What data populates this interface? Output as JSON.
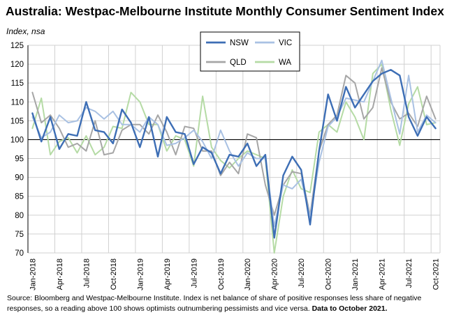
{
  "title": "Australia: Westpac-Melbourne Institute Monthly Consumer Sentiment Index",
  "ylabel": "Index, nsa",
  "footnote": {
    "text": "Source: Bloomberg and Westpac-Melbourne Institute.  Index is net balance of share of positive responses less share of negative responses, so a reading above 100 shows optimists outnumbering pessimists and vice versa.",
    "bold": "Data to October 2021."
  },
  "chart_data": {
    "type": "line",
    "title": "Australia: Westpac-Melbourne Institute Monthly Consumer Sentiment Index",
    "ylabel": "Index, nsa",
    "xlabel": "",
    "ylim": [
      70,
      125
    ],
    "yticks": [
      70,
      75,
      80,
      85,
      90,
      95,
      100,
      105,
      110,
      115,
      120,
      125
    ],
    "x_tick_labels": [
      "Jan-2018",
      "Apr-2018",
      "Jul-2018",
      "Oct-2018",
      "Jan-2019",
      "Apr-2019",
      "Jul-2019",
      "Oct-2019",
      "Jan-2020",
      "Apr-2020",
      "Jul-2020",
      "Oct-2020",
      "Jan-2021",
      "Apr-2021",
      "Jul-2021",
      "Oct-2021"
    ],
    "x": [
      "Jan-2018",
      "Feb-2018",
      "Mar-2018",
      "Apr-2018",
      "May-2018",
      "Jun-2018",
      "Jul-2018",
      "Aug-2018",
      "Sep-2018",
      "Oct-2018",
      "Nov-2018",
      "Dec-2018",
      "Jan-2019",
      "Feb-2019",
      "Mar-2019",
      "Apr-2019",
      "May-2019",
      "Jun-2019",
      "Jul-2019",
      "Aug-2019",
      "Sep-2019",
      "Oct-2019",
      "Nov-2019",
      "Dec-2019",
      "Jan-2020",
      "Feb-2020",
      "Mar-2020",
      "Apr-2020",
      "May-2020",
      "Jun-2020",
      "Jul-2020",
      "Aug-2020",
      "Sep-2020",
      "Oct-2020",
      "Nov-2020",
      "Dec-2020",
      "Jan-2021",
      "Feb-2021",
      "Mar-2021",
      "Apr-2021",
      "May-2021",
      "Jun-2021",
      "Jul-2021",
      "Aug-2021",
      "Sep-2021",
      "Oct-2021"
    ],
    "grid": true,
    "legend_position": "top-center",
    "legend_columns": 2,
    "series": [
      {
        "name": "NSW",
        "color": "#3d6eb5",
        "width": 2.4,
        "values": [
          107,
          99.5,
          106,
          97.5,
          101.5,
          101,
          110,
          102.5,
          102,
          99,
          108,
          104.5,
          98,
          106,
          95.5,
          106,
          102,
          101.5,
          93.5,
          98,
          96.5,
          91,
          96,
          95.5,
          99,
          93,
          96,
          74,
          90.5,
          95.5,
          92,
          77.5,
          97,
          112,
          105,
          114,
          108.5,
          112,
          115.5,
          117.5,
          118.5,
          117,
          106,
          101,
          106,
          103
        ]
      },
      {
        "name": "VIC",
        "color": "#a9c1e3",
        "width": 2.0,
        "values": [
          106,
          100.5,
          102,
          106.5,
          104.5,
          105,
          108.5,
          107.5,
          105.5,
          107.5,
          104,
          104,
          102,
          106,
          104,
          98.5,
          99,
          100.5,
          102.5,
          99.5,
          95,
          102.5,
          97,
          93,
          96.5,
          95,
          95,
          77,
          88,
          87,
          89.5,
          79.5,
          94,
          103.5,
          106,
          111,
          110.5,
          110,
          115.5,
          121,
          111,
          101.5,
          117,
          102,
          106.5,
          104.5
        ]
      },
      {
        "name": "QLD",
        "color": "#a6a6a6",
        "width": 2.0,
        "values": [
          112.5,
          104.5,
          106.5,
          103,
          98,
          99,
          97,
          105,
          96,
          96.5,
          102.5,
          104,
          104,
          101.5,
          106.5,
          102,
          96,
          103.5,
          103,
          97,
          97,
          90.5,
          94,
          91,
          101.5,
          100.5,
          88,
          80,
          88,
          91.5,
          91,
          80,
          97,
          104,
          106.5,
          117,
          115,
          105.5,
          108.5,
          119,
          110,
          105.5,
          107,
          103.5,
          111.5,
          105.5
        ]
      },
      {
        "name": "WA",
        "color": "#b5dba5",
        "width": 2.0,
        "values": [
          103,
          111,
          96,
          99.5,
          100.5,
          96.5,
          101,
          96,
          98,
          103.5,
          103,
          112.5,
          110,
          104,
          104,
          97,
          101,
          100,
          93,
          111.5,
          98,
          94.5,
          92.5,
          95,
          97,
          96,
          95,
          70,
          85,
          92,
          87,
          86,
          102,
          104,
          102,
          110,
          106,
          100,
          117.5,
          120,
          108,
          98.5,
          109.5,
          114,
          104,
          104.5
        ]
      }
    ]
  }
}
